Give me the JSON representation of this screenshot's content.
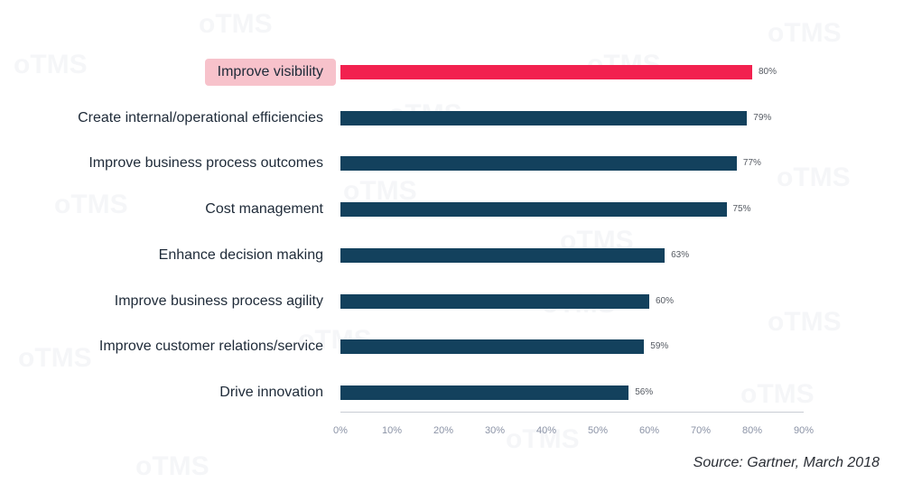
{
  "chart_data": {
    "type": "bar",
    "orientation": "horizontal",
    "categories": [
      "Improve visibility",
      "Create internal/operational efficiencies",
      "Improve business process outcomes",
      "Cost management",
      "Enhance decision making",
      "Improve business process agility",
      "Improve customer relations/service",
      "Drive innovation"
    ],
    "values": [
      80,
      79,
      77,
      75,
      63,
      60,
      59,
      56
    ],
    "value_labels": [
      "80%",
      "79%",
      "77%",
      "75%",
      "63%",
      "60%",
      "59%",
      "56%"
    ],
    "highlight_index": 0,
    "xlim": [
      0,
      90
    ],
    "xticks": [
      "0%",
      "10%",
      "20%",
      "30%",
      "40%",
      "50%",
      "60%",
      "70%",
      "80%",
      "90%"
    ],
    "colors": {
      "highlight": "#f2214f",
      "default": "#13415d",
      "highlight_label_bg": "#f7c2cb"
    },
    "title": "",
    "xlabel": "",
    "ylabel": ""
  },
  "source": "Source: Gartner, March 2018",
  "watermark": "oTMS"
}
